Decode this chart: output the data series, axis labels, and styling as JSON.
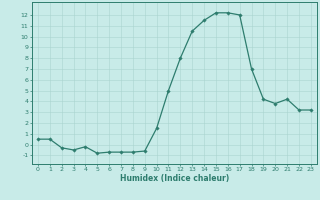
{
  "x": [
    0,
    1,
    2,
    3,
    4,
    5,
    6,
    7,
    8,
    9,
    10,
    11,
    12,
    13,
    14,
    15,
    16,
    17,
    18,
    19,
    20,
    21,
    22,
    23
  ],
  "y": [
    0.5,
    0.5,
    -0.3,
    -0.5,
    -0.2,
    -0.8,
    -0.7,
    -0.7,
    -0.7,
    -0.6,
    1.5,
    5.0,
    8.0,
    10.5,
    11.5,
    12.2,
    12.2,
    12.0,
    7.0,
    4.2,
    3.8,
    4.2,
    3.2,
    3.2
  ],
  "line_color": "#2e7d6e",
  "marker": "D",
  "marker_size": 1.8,
  "linewidth": 0.9,
  "bg_color": "#c8ebe8",
  "grid_color": "#aad4cf",
  "axis_color": "#2e7d6e",
  "tick_color": "#2e7d6e",
  "xlabel": "Humidex (Indice chaleur)",
  "xlabel_fontsize": 5.5,
  "xlim": [
    -0.5,
    23.5
  ],
  "ylim": [
    -1.8,
    13.2
  ],
  "yticks": [
    -1,
    0,
    1,
    2,
    3,
    4,
    5,
    6,
    7,
    8,
    9,
    10,
    11,
    12
  ],
  "xticks": [
    0,
    1,
    2,
    3,
    4,
    5,
    6,
    7,
    8,
    9,
    10,
    11,
    12,
    13,
    14,
    15,
    16,
    17,
    18,
    19,
    20,
    21,
    22,
    23
  ],
  "tick_fontsize": 4.5
}
